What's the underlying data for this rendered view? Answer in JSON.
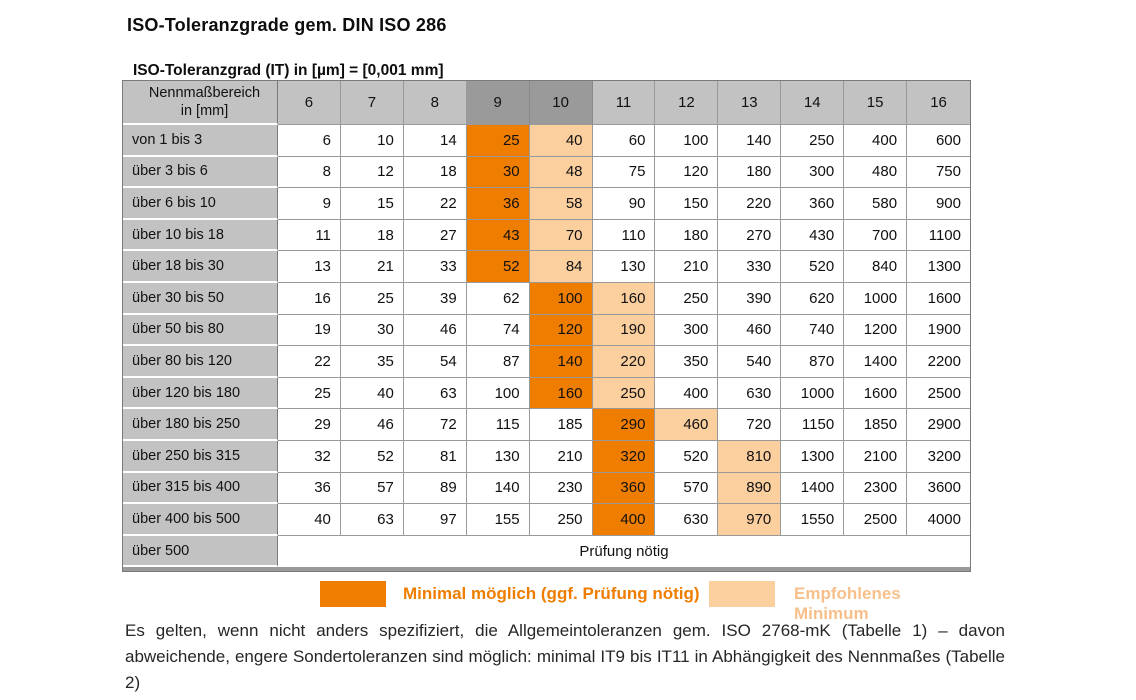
{
  "page": {
    "title": "ISO-Toleranzgrade gem. DIN ISO 286",
    "subtitle": "ISO-Toleranzgrad (IT) in [µm] = [0,001 mm]"
  },
  "table": {
    "corner_line1": "Nennmaßbereich",
    "corner_line2": "in [mm]",
    "it_grades": [
      "6",
      "7",
      "8",
      "9",
      "10",
      "11",
      "12",
      "13",
      "14",
      "15",
      "16"
    ],
    "dark_header_grades": [
      "9",
      "10"
    ],
    "rows": [
      {
        "label": "von 1 bis 3",
        "values": [
          6,
          10,
          14,
          25,
          40,
          60,
          100,
          140,
          250,
          400,
          600
        ],
        "orange_index": 3,
        "light_index": 4
      },
      {
        "label": "über 3 bis 6",
        "values": [
          8,
          12,
          18,
          30,
          48,
          75,
          120,
          180,
          300,
          480,
          750
        ],
        "orange_index": 3,
        "light_index": 4
      },
      {
        "label": "über 6 bis 10",
        "values": [
          9,
          15,
          22,
          36,
          58,
          90,
          150,
          220,
          360,
          580,
          900
        ],
        "orange_index": 3,
        "light_index": 4
      },
      {
        "label": "über 10 bis 18",
        "values": [
          11,
          18,
          27,
          43,
          70,
          110,
          180,
          270,
          430,
          700,
          1100
        ],
        "orange_index": 3,
        "light_index": 4
      },
      {
        "label": "über 18 bis 30",
        "values": [
          13,
          21,
          33,
          52,
          84,
          130,
          210,
          330,
          520,
          840,
          1300
        ],
        "orange_index": 3,
        "light_index": 4
      },
      {
        "label": "über 30 bis 50",
        "values": [
          16,
          25,
          39,
          62,
          100,
          160,
          250,
          390,
          620,
          1000,
          1600
        ],
        "orange_index": 4,
        "light_index": 5
      },
      {
        "label": "über 50 bis 80",
        "values": [
          19,
          30,
          46,
          74,
          120,
          190,
          300,
          460,
          740,
          1200,
          1900
        ],
        "orange_index": 4,
        "light_index": 5
      },
      {
        "label": "über 80 bis 120",
        "values": [
          22,
          35,
          54,
          87,
          140,
          220,
          350,
          540,
          870,
          1400,
          2200
        ],
        "orange_index": 4,
        "light_index": 5
      },
      {
        "label": "über 120 bis 180",
        "values": [
          25,
          40,
          63,
          100,
          160,
          250,
          400,
          630,
          1000,
          1600,
          2500
        ],
        "orange_index": 4,
        "light_index": 5
      },
      {
        "label": "über 180 bis 250",
        "values": [
          29,
          46,
          72,
          115,
          185,
          290,
          460,
          720,
          1150,
          1850,
          2900
        ],
        "orange_index": 5,
        "light_index": 6
      },
      {
        "label": "über 250 bis 315",
        "values": [
          32,
          52,
          81,
          130,
          210,
          320,
          520,
          810,
          1300,
          2100,
          3200
        ],
        "orange_index": 5,
        "light_index": 7
      },
      {
        "label": "über 315 bis 400",
        "values": [
          36,
          57,
          89,
          140,
          230,
          360,
          570,
          890,
          1400,
          2300,
          3600
        ],
        "orange_index": 5,
        "light_index": 7
      },
      {
        "label": "über 400 bis 500",
        "values": [
          40,
          63,
          97,
          155,
          250,
          400,
          630,
          970,
          1550,
          2500,
          4000
        ],
        "orange_index": 5,
        "light_index": 7
      }
    ],
    "footer_row": {
      "label": "über 500",
      "note": "Prüfung nötig"
    }
  },
  "legend": {
    "items": [
      {
        "label": "Minimal möglich (ggf. Prüfung nötig)",
        "swatch_color": "#ee7d00",
        "text_color": "#ee7d00"
      },
      {
        "label": "Empfohlenes Minimum",
        "swatch_color": "#fbcf9e",
        "text_color": "#f7c08b"
      }
    ]
  },
  "footnote": "Es gelten, wenn nicht anders spezifiziert, die Allgemeintoleranzen gem. ISO 2768-mK (Tabelle 1) – davon abweichende, engere Sondertoleranzen sind möglich: minimal IT9 bis IT11 in Abhängigkeit des Nennmaßes (Tabelle 2)",
  "colors": {
    "minimal_highlight": "#ee7d00",
    "recommended_highlight": "#fbcf9e",
    "header_gray": "#c2c2c2",
    "header_dark_gray": "#9a9a9a"
  }
}
